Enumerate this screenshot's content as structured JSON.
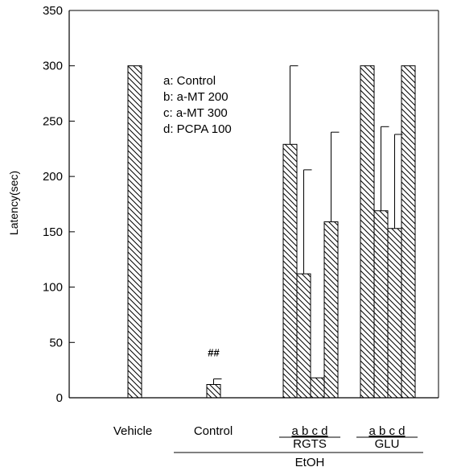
{
  "chart_data": {
    "type": "bar",
    "ylabel": "Latency(sec)",
    "ylim": [
      0,
      350
    ],
    "yticks": [
      0,
      50,
      100,
      150,
      200,
      250,
      300,
      350
    ],
    "grid": false,
    "legend_placement": "top-left inside plot",
    "legend": [
      "a: Control",
      "b: a-MT 200",
      "c: a-MT 300",
      "d: PCPA 100"
    ],
    "groups": [
      {
        "label": "Vehicle",
        "bars": [
          {
            "sub": "",
            "value": 300,
            "error": 0
          }
        ]
      },
      {
        "label": "Control",
        "annotation": "##",
        "bars": [
          {
            "sub": "",
            "value": 12,
            "error": 5
          }
        ]
      },
      {
        "label": "RGTS",
        "sublabels": "a b c d",
        "bars": [
          {
            "sub": "a",
            "value": 229,
            "error": 71
          },
          {
            "sub": "b",
            "value": 112,
            "error": 94
          },
          {
            "sub": "c",
            "value": 18,
            "error": 0
          },
          {
            "sub": "d",
            "value": 159,
            "error": 81
          }
        ]
      },
      {
        "label": "GLU",
        "sublabels": "a b c d",
        "bars": [
          {
            "sub": "a",
            "value": 300,
            "error": 0
          },
          {
            "sub": "b",
            "value": 169,
            "error": 76
          },
          {
            "sub": "c",
            "value": 153,
            "error": 85
          },
          {
            "sub": "d",
            "value": 300,
            "error": 0
          }
        ]
      }
    ],
    "super_group_label": "EtOH"
  },
  "colors": {
    "ink": "#000000",
    "background": "#ffffff"
  }
}
